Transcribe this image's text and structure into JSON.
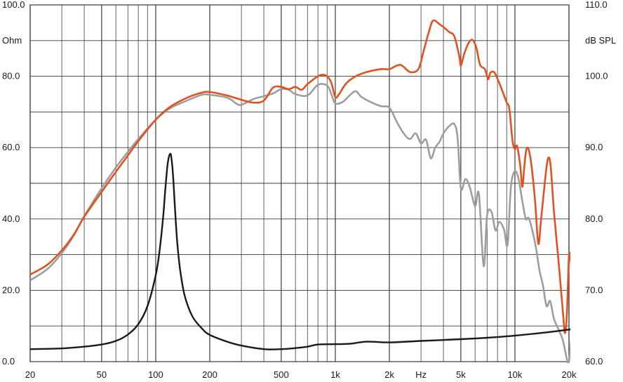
{
  "chart_data": {
    "type": "line",
    "x_scale": "log",
    "xlim": [
      20,
      20000
    ],
    "grid": true,
    "left_axis": {
      "unit_label": "Ohm",
      "ylim": [
        0,
        100
      ],
      "tick_labels": [
        {
          "value": 0,
          "label": "0.0"
        },
        {
          "value": 20,
          "label": "20.0"
        },
        {
          "value": 40,
          "label": "40.0"
        },
        {
          "value": 60,
          "label": "60.0"
        },
        {
          "value": 80,
          "label": "80.0"
        },
        {
          "value": 100,
          "label": "100.0"
        }
      ]
    },
    "right_axis": {
      "unit_label": "dB SPL",
      "ylim": [
        60,
        110
      ],
      "tick_labels": [
        {
          "value": 60,
          "label": "60.0"
        },
        {
          "value": 70,
          "label": "70.0"
        },
        {
          "value": 80,
          "label": "80.0"
        },
        {
          "value": 90,
          "label": "90.0"
        },
        {
          "value": 100,
          "label": "100.0"
        },
        {
          "value": 110,
          "label": "110.0"
        }
      ]
    },
    "x_unit_label": "Hz",
    "x_tick_labels": [
      {
        "value": 20,
        "label": "20"
      },
      {
        "value": 50,
        "label": "50"
      },
      {
        "value": 100,
        "label": "100"
      },
      {
        "value": 200,
        "label": "200"
      },
      {
        "value": 500,
        "label": "500"
      },
      {
        "value": 1000,
        "label": "1k"
      },
      {
        "value": 2000,
        "label": "2k"
      },
      {
        "value": 5000,
        "label": "5k"
      },
      {
        "value": 10000,
        "label": "10k"
      },
      {
        "value": 20000,
        "label": "20k"
      }
    ],
    "series": [
      {
        "axis": "right",
        "color": "#e0521f",
        "points": [
          [
            20,
            72.2
          ],
          [
            25,
            73.6
          ],
          [
            30,
            75.6
          ],
          [
            35,
            77.8
          ],
          [
            40,
            80.3
          ],
          [
            50,
            83.8
          ],
          [
            60,
            86.6
          ],
          [
            70,
            88.9
          ],
          [
            80,
            90.9
          ],
          [
            100,
            93.9
          ],
          [
            120,
            95.7
          ],
          [
            150,
            97.0
          ],
          [
            180,
            97.7
          ],
          [
            200,
            97.8
          ],
          [
            250,
            97.3
          ],
          [
            300,
            96.7
          ],
          [
            350,
            96.3
          ],
          [
            400,
            96.6
          ],
          [
            450,
            98.4
          ],
          [
            500,
            98.5
          ],
          [
            550,
            98.2
          ],
          [
            600,
            98.5
          ],
          [
            650,
            98.1
          ],
          [
            700,
            98.9
          ],
          [
            800,
            100.0
          ],
          [
            850,
            100.2
          ],
          [
            900,
            100.0
          ],
          [
            950,
            99.1
          ],
          [
            1000,
            97.1
          ],
          [
            1050,
            97.5
          ],
          [
            1150,
            99.0
          ],
          [
            1300,
            100.0
          ],
          [
            1500,
            100.6
          ],
          [
            1800,
            101.0
          ],
          [
            2000,
            101.0
          ],
          [
            2300,
            101.6
          ],
          [
            2600,
            100.6
          ],
          [
            2900,
            101.0
          ],
          [
            3100,
            103.5
          ],
          [
            3300,
            106.0
          ],
          [
            3500,
            107.8
          ],
          [
            3800,
            107.3
          ],
          [
            4000,
            106.9
          ],
          [
            4300,
            106.2
          ],
          [
            4600,
            105.6
          ],
          [
            4900,
            102.8
          ],
          [
            5000,
            101.5
          ],
          [
            5200,
            103.0
          ],
          [
            5500,
            104.6
          ],
          [
            5800,
            105.1
          ],
          [
            6100,
            104.0
          ],
          [
            6400,
            101.6
          ],
          [
            6800,
            101.0
          ],
          [
            7100,
            99.6
          ],
          [
            7300,
            100.5
          ],
          [
            7700,
            100.5
          ],
          [
            8200,
            99.0
          ],
          [
            8700,
            97.3
          ],
          [
            9000,
            96.3
          ],
          [
            9300,
            95.5
          ],
          [
            9700,
            91.0
          ],
          [
            10000,
            89.8
          ],
          [
            10300,
            90.2
          ],
          [
            10700,
            87.5
          ],
          [
            11000,
            84.5
          ],
          [
            11300,
            87.5
          ],
          [
            11600,
            89.8
          ],
          [
            12000,
            89.5
          ],
          [
            12500,
            86.5
          ],
          [
            13000,
            82.0
          ],
          [
            13500,
            76.5
          ],
          [
            14000,
            80.0
          ],
          [
            14800,
            86.0
          ],
          [
            15300,
            88.5
          ],
          [
            15800,
            87.5
          ],
          [
            16500,
            81.0
          ],
          [
            17500,
            74.0
          ],
          [
            18500,
            67.0
          ],
          [
            19000,
            64.0
          ],
          [
            19500,
            67.0
          ],
          [
            20000,
            74.8
          ],
          [
            20500,
            74.0
          ],
          [
            21000,
            70.0
          ]
        ]
      },
      {
        "axis": "right",
        "color": "#9e9e9e",
        "points": [
          [
            20,
            71.4
          ],
          [
            25,
            73.0
          ],
          [
            30,
            75.2
          ],
          [
            35,
            77.7
          ],
          [
            40,
            80.4
          ],
          [
            50,
            84.3
          ],
          [
            60,
            87.2
          ],
          [
            70,
            89.4
          ],
          [
            80,
            91.2
          ],
          [
            100,
            93.9
          ],
          [
            120,
            95.5
          ],
          [
            150,
            96.6
          ],
          [
            180,
            97.4
          ],
          [
            200,
            97.4
          ],
          [
            250,
            97.0
          ],
          [
            280,
            96.2
          ],
          [
            300,
            96.0
          ],
          [
            350,
            96.8
          ],
          [
            400,
            97.2
          ],
          [
            450,
            97.6
          ],
          [
            500,
            98.2
          ],
          [
            550,
            98.1
          ],
          [
            600,
            97.5
          ],
          [
            700,
            97.3
          ],
          [
            800,
            98.8
          ],
          [
            900,
            98.7
          ],
          [
            950,
            97.5
          ],
          [
            1000,
            96.2
          ],
          [
            1100,
            96.4
          ],
          [
            1200,
            97.3
          ],
          [
            1300,
            97.9
          ],
          [
            1400,
            97.1
          ],
          [
            1600,
            96.3
          ],
          [
            1800,
            95.8
          ],
          [
            2000,
            95.6
          ],
          [
            2200,
            93.6
          ],
          [
            2400,
            92.0
          ],
          [
            2600,
            91.2
          ],
          [
            2800,
            92.0
          ],
          [
            3000,
            90.6
          ],
          [
            3200,
            91.1
          ],
          [
            3400,
            88.5
          ],
          [
            3600,
            90.0
          ],
          [
            3800,
            90.8
          ],
          [
            4000,
            92.0
          ],
          [
            4300,
            93.0
          ],
          [
            4600,
            93.3
          ],
          [
            4800,
            91.3
          ],
          [
            5000,
            84.3
          ],
          [
            5300,
            85.6
          ],
          [
            5600,
            84.5
          ],
          [
            6000,
            81.8
          ],
          [
            6300,
            83.5
          ],
          [
            6700,
            73.4
          ],
          [
            7000,
            80.5
          ],
          [
            7400,
            81.0
          ],
          [
            7800,
            78.4
          ],
          [
            8200,
            79.6
          ],
          [
            8700,
            78.5
          ],
          [
            9100,
            76.4
          ],
          [
            9500,
            84.5
          ],
          [
            10000,
            86.7
          ],
          [
            10500,
            85.5
          ],
          [
            11000,
            82.5
          ],
          [
            11500,
            80.0
          ],
          [
            12000,
            80.0
          ],
          [
            13000,
            76.4
          ],
          [
            13700,
            72.8
          ],
          [
            14300,
            70.8
          ],
          [
            15000,
            67.8
          ],
          [
            15700,
            68.5
          ],
          [
            16500,
            66.0
          ],
          [
            17500,
            64.5
          ],
          [
            18500,
            63.0
          ],
          [
            19500,
            60.3
          ],
          [
            20000,
            60.0
          ],
          [
            21000,
            65.5
          ]
        ]
      },
      {
        "axis": "left",
        "color": "#1a1a1a",
        "points": [
          [
            20,
            3.5
          ],
          [
            30,
            3.7
          ],
          [
            40,
            4.2
          ],
          [
            50,
            4.8
          ],
          [
            60,
            5.8
          ],
          [
            70,
            7.6
          ],
          [
            80,
            10.5
          ],
          [
            90,
            15.6
          ],
          [
            100,
            24.2
          ],
          [
            105,
            31.0
          ],
          [
            110,
            40.5
          ],
          [
            113,
            48.0
          ],
          [
            116,
            54.5
          ],
          [
            118,
            57.0
          ],
          [
            120,
            58.2
          ],
          [
            122,
            57.5
          ],
          [
            125,
            52.0
          ],
          [
            128,
            43.0
          ],
          [
            132,
            33.0
          ],
          [
            137,
            25.5
          ],
          [
            145,
            18.5
          ],
          [
            160,
            12.7
          ],
          [
            180,
            9.4
          ],
          [
            200,
            7.5
          ],
          [
            250,
            5.6
          ],
          [
            300,
            4.5
          ],
          [
            400,
            3.5
          ],
          [
            500,
            3.5
          ],
          [
            600,
            3.8
          ],
          [
            700,
            4.2
          ],
          [
            800,
            4.8
          ],
          [
            1000,
            4.9
          ],
          [
            1200,
            5.0
          ],
          [
            1500,
            5.6
          ],
          [
            2000,
            5.4
          ],
          [
            3000,
            5.8
          ],
          [
            5000,
            6.3
          ],
          [
            7000,
            6.7
          ],
          [
            10000,
            7.3
          ],
          [
            15000,
            8.2
          ],
          [
            20000,
            9.0
          ],
          [
            21000,
            9.2
          ]
        ]
      }
    ]
  }
}
